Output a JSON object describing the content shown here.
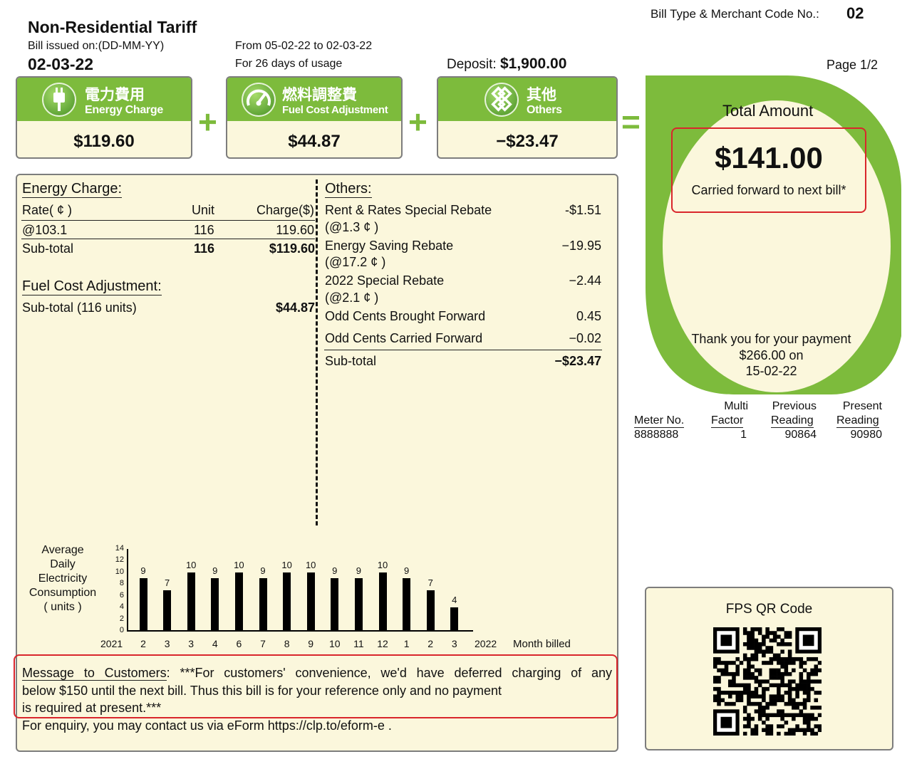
{
  "header": {
    "bill_type_label": "Bill Type & Merchant Code No.:",
    "bill_type_value": "02",
    "title": "Non-Residential Tariff",
    "issued_label": "Bill issued on:(DD-MM-YY)",
    "issued_date": "02-03-22",
    "period": "From 05-02-22 to 02-03-22",
    "usage_days": "For 26 days of usage",
    "deposit_label": "Deposit:",
    "deposit_value": "$1,900.00",
    "page": "Page 1/2"
  },
  "summary": {
    "energy": {
      "zh": "電力費用",
      "en": "Energy Charge",
      "amount": "$119.60",
      "icon": "plug-icon"
    },
    "plus1": "+",
    "fuel": {
      "zh": "燃料調整費",
      "en": "Fuel Cost Adjustment",
      "amount": "$44.87",
      "icon": "gauge-icon"
    },
    "plus2": "+",
    "others": {
      "zh": "其他",
      "en": "Others",
      "amount": "−$23.47",
      "icon": "knot-icon"
    },
    "equals": "="
  },
  "total": {
    "label": "Total Amount",
    "amount": "$141.00",
    "carried": "Carried forward to next bill*",
    "thanks": "Thank you for your payment",
    "paid_amount": "$266.00 on",
    "paid_date": "15-02-22"
  },
  "energy_charge": {
    "title": "Energy Charge:",
    "col_rate": "Rate( ¢ )",
    "col_unit": "Unit",
    "col_charge": "Charge($)",
    "row_rate": "@103.1",
    "row_unit": "116",
    "row_charge": "119.60",
    "subtotal_label": "Sub-total",
    "subtotal_unit": "116",
    "subtotal_charge": "$119.60"
  },
  "fuel_cost": {
    "title": "Fuel Cost Adjustment:",
    "subtotal_label": "Sub-total (116 units)",
    "subtotal_value": "$44.87"
  },
  "others": {
    "title": "Others:",
    "items": [
      {
        "label": "Rent & Rates Special Rebate",
        "sub": "(@1.3 ¢ )",
        "value": "-$1.51"
      },
      {
        "label": "Energy Saving Rebate",
        "sub": "(@17.2 ¢ )",
        "value": "−19.95"
      },
      {
        "label": "2022 Special Rebate",
        "sub": "(@2.1 ¢ )",
        "value": "−2.44"
      },
      {
        "label": "Odd Cents Brought Forward",
        "sub": "",
        "value": "0.45"
      },
      {
        "label": "Odd Cents Carried Forward",
        "sub": "",
        "value": "−0.02"
      }
    ],
    "subtotal_label": "Sub-total",
    "subtotal_value": "−$23.47"
  },
  "meter": {
    "h_meter": "Meter No.",
    "h_multi_1": "Multi",
    "h_multi_2": "Factor",
    "h_prev_1": "Previous",
    "h_prev_2": "Reading",
    "h_pres_1": "Present",
    "h_pres_2": "Reading",
    "meter_no": "8888888",
    "factor": "1",
    "previous": "90864",
    "present": "90980"
  },
  "chart_data": {
    "type": "bar",
    "ylabel_lines": [
      "Average",
      "Daily",
      "Electricity",
      "Consumption",
      "( units )"
    ],
    "xlabel": "Month billed",
    "year_start": "2021",
    "year_end": "2022",
    "yticks": [
      "0",
      "2",
      "4",
      "6",
      "8",
      "10",
      "12",
      "14"
    ],
    "ylim": [
      0,
      14
    ],
    "categories": [
      "2",
      "3",
      "3",
      "4",
      "6",
      "7",
      "8",
      "9",
      "10",
      "11",
      "12",
      "1",
      "2",
      "3"
    ],
    "values": [
      9,
      7,
      10,
      9,
      10,
      9,
      10,
      10,
      9,
      9,
      10,
      9,
      7,
      4
    ]
  },
  "message": {
    "label": "Message to Customers",
    "line1": ": ***For customers' convenience, we'd have deferred charging of any",
    "line2": "below $150 until the next bill. Thus this bill is for your reference only and no payment",
    "line3": "is required at present.***",
    "enquiry": "For enquiry, you may contact us via eForm https://clp.to/eform-e ."
  },
  "qr": {
    "label": "FPS QR Code"
  },
  "colors": {
    "accent": "#7dbb3c",
    "panel": "#fbf7dc",
    "highlight": "#d9262c"
  }
}
